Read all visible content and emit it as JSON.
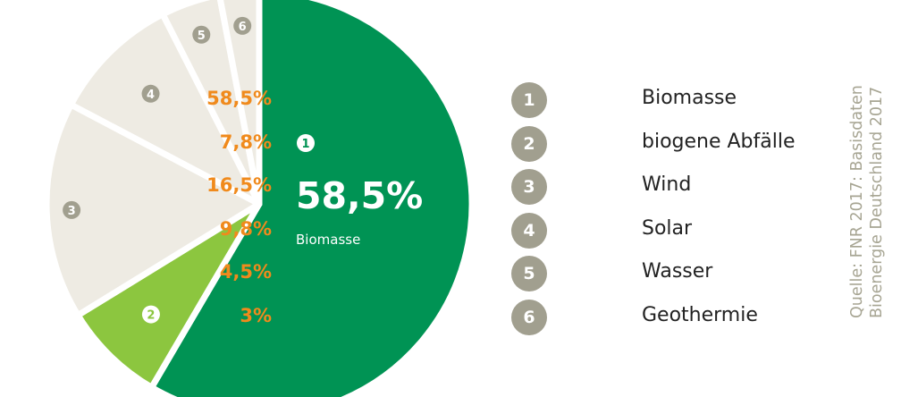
{
  "chart_data": {
    "type": "pie",
    "slices": [
      {
        "number": "1",
        "value": 58.5,
        "label": "58,5%",
        "name": "Biomasse",
        "color": "#009354"
      },
      {
        "number": "2",
        "value": 7.8,
        "label": "7,8%",
        "name": "biogene Abfälle",
        "color": "#8cc63f"
      },
      {
        "number": "3",
        "value": 16.5,
        "label": "16,5%",
        "name": "Wind",
        "color": "#eeebe3"
      },
      {
        "number": "4",
        "value": 9.8,
        "label": "9,8%",
        "name": "Solar",
        "color": "#eeebe3"
      },
      {
        "number": "5",
        "value": 4.5,
        "label": "4,5%",
        "name": "Wasser",
        "color": "#eeebe3"
      },
      {
        "number": "6",
        "value": 3,
        "label": "3%",
        "name": "Geothermie",
        "color": "#eeebe3"
      }
    ],
    "callout": {
      "number": "1",
      "value_label": "58,5%",
      "name": "Biomasse"
    }
  },
  "colors": {
    "marker": "#a19f8f",
    "marker_on_green": "#ffffff",
    "percent_text": "#f08a1c",
    "source_text": "#a7a593"
  },
  "source": {
    "line1": "Quelle: FNR 2017: Basisdaten",
    "line2": "Bioenergie Deutschland 2017"
  }
}
